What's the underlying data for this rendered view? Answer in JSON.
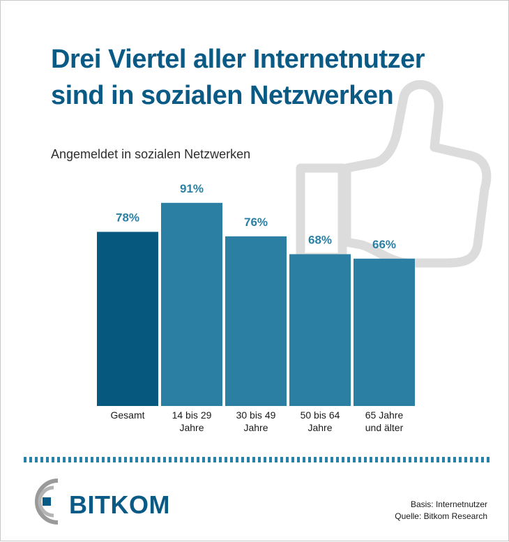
{
  "header": {
    "title_line1": "Drei Viertel aller Internetnutzer",
    "title_line2": "sind in sozialen Netzwerken",
    "subtitle": "Angemeldet in sozialen Netzwerken"
  },
  "chart_data": {
    "type": "bar",
    "title": "Drei Viertel aller Internetnutzer sind in sozialen Netzwerken",
    "subtitle": "Angemeldet in sozialen Netzwerken",
    "categories": [
      [
        "Gesamt"
      ],
      [
        "14 bis 29",
        "Jahre"
      ],
      [
        "30 bis 49",
        "Jahre"
      ],
      [
        "50 bis 64",
        "Jahre"
      ],
      [
        "65 Jahre",
        "und älter"
      ]
    ],
    "values": [
      78,
      91,
      76,
      68,
      66
    ],
    "value_labels": [
      "78%",
      "91%",
      "76%",
      "68%",
      "66%"
    ],
    "unit": "%",
    "ylim": [
      0,
      100
    ],
    "grid": false,
    "colors": {
      "highlight_bar": "#07587f",
      "bar": "#2b7fa3",
      "label": "#2b7fa3"
    }
  },
  "colors": {
    "title": "#0a5a86",
    "thumb_icon": "#dcdcdc",
    "dash_line": "#2b7fa6"
  },
  "icons": {
    "background": "thumbs-up-icon",
    "logo": "bitkom-logo"
  },
  "footer": {
    "logo_text": "BITKOM",
    "basis": "Basis: Internetnutzer",
    "quelle": "Quelle: Bitkom Research"
  }
}
